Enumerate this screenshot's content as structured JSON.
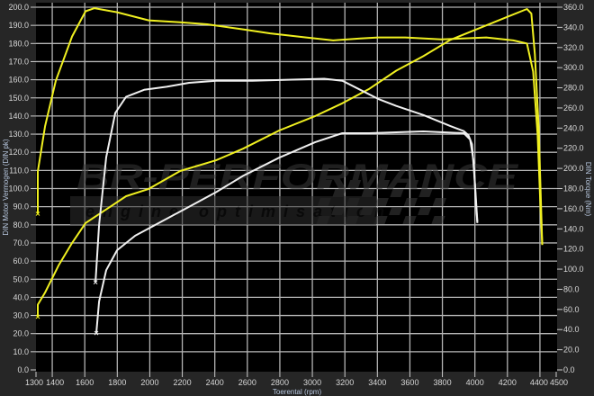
{
  "chart_data": {
    "type": "line",
    "title": "",
    "xlabel": "Toerental (rpm)",
    "ylabel": "DIN Motor Vermogen (DIN pk)",
    "y2label": "DIN Torque (Nm)",
    "xlim": [
      1300,
      4500
    ],
    "ylim": [
      0,
      200
    ],
    "y2lim": [
      0,
      360
    ],
    "x_ticks": [
      1300,
      1400,
      1600,
      1800,
      2000,
      2200,
      2400,
      2600,
      2800,
      3000,
      3200,
      3400,
      3600,
      3800,
      4000,
      4200,
      4400,
      4500
    ],
    "y_ticks": [
      "0.0",
      "10.0",
      "20.0",
      "30.0",
      "40.0",
      "50.0",
      "60.0",
      "70.0",
      "80.0",
      "90.0",
      "100.0",
      "110.0",
      "120.0",
      "130.0",
      "140.0",
      "150.0",
      "160.0",
      "170.0",
      "180.0",
      "190.0",
      "200.0"
    ],
    "y2_ticks": [
      "0.0",
      "20.0",
      "40.0",
      "60.0",
      "80.0",
      "100.0",
      "120.0",
      "140.0",
      "160.0",
      "180.0",
      "200.0",
      "220.0",
      "240.0",
      "260.0",
      "280.0",
      "300.0",
      "320.0",
      "340.0",
      "360.0"
    ],
    "grid": true,
    "background": "#000000",
    "series": [
      {
        "axis": "y2",
        "color": "#f0f020",
        "x": [
          1311,
          1311,
          1356,
          1422,
          1522,
          1605,
          1660,
          1799,
          1993,
          2187,
          2353,
          2574,
          2741,
          2962,
          3128,
          3295,
          3405,
          3572,
          3793,
          4070,
          4236,
          4320,
          4358,
          4386,
          4403,
          4414
        ],
        "y": [
          155,
          197,
          242,
          287,
          331,
          356,
          359,
          355,
          347,
          345,
          343,
          338,
          334,
          330,
          327,
          329,
          330,
          330,
          328,
          330,
          327,
          324,
          296,
          233,
          162,
          124
        ]
      },
      {
        "axis": "y",
        "color": "#f0f020",
        "x": [
          1311,
          1311,
          1356,
          1439,
          1522,
          1605,
          1854,
          1993,
          2187,
          2408,
          2574,
          2796,
          3018,
          3184,
          3350,
          3516,
          3683,
          3849,
          4015,
          4181,
          4320,
          4347,
          4369,
          4392,
          4414
        ],
        "y": [
          29.3,
          36,
          42.7,
          57.6,
          70,
          81,
          95.8,
          99.8,
          109.7,
          115.6,
          122,
          132,
          140,
          147,
          155,
          165,
          173,
          182,
          188,
          194,
          199,
          196.5,
          174,
          134,
          69
        ]
      },
      {
        "axis": "y2",
        "color": "#f0f0f0",
        "x": [
          1666,
          1688,
          1732,
          1788,
          1854,
          1965,
          2104,
          2242,
          2408,
          2630,
          2851,
          3073,
          3184,
          3295,
          3405,
          3516,
          3683,
          3849,
          3932,
          3960,
          3982,
          3999,
          4015
        ],
        "y": [
          87,
          144,
          211,
          255,
          271,
          278,
          281,
          285,
          287,
          287,
          288,
          289,
          287,
          278,
          269,
          262,
          253,
          242,
          237,
          233,
          224,
          188,
          147
        ]
      },
      {
        "axis": "y",
        "color": "#f0f0f0",
        "x": [
          1671,
          1688,
          1732,
          1799,
          1910,
          2076,
          2242,
          2408,
          2574,
          2796,
          3018,
          3184,
          3350,
          3683,
          3932,
          3971,
          3993,
          4004,
          4015
        ],
        "y": [
          20.3,
          37.7,
          55,
          66,
          74,
          82,
          90,
          98,
          107,
          117,
          125.6,
          130.5,
          130.5,
          131.5,
          130.5,
          127,
          114.6,
          94.8,
          81
        ]
      }
    ]
  },
  "watermark": {
    "brand": "BR-PERFORMANCE",
    "tagline": "engine optimisation"
  }
}
